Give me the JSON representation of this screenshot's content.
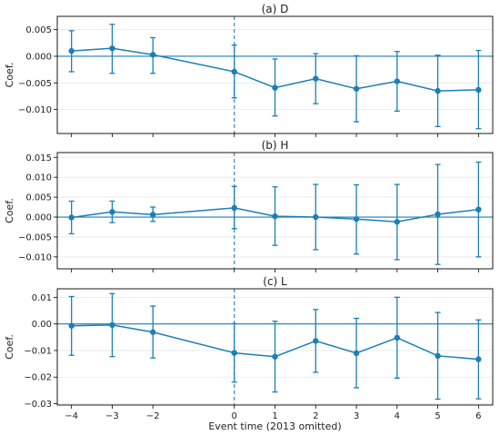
{
  "chart_data": [
    {
      "type": "line",
      "title": "(a) D",
      "ylabel": "Coef.",
      "xlabel": "",
      "ylim": [
        -0.0145,
        0.0075
      ],
      "yticks": [
        0.005,
        0.0,
        -0.005,
        -0.01
      ],
      "ytick_labels": [
        "0.005",
        "0.000",
        "−0.005",
        "−0.010"
      ],
      "x": [
        -4,
        -3,
        -2,
        0,
        1,
        2,
        3,
        4,
        5,
        6
      ],
      "y": [
        0.001,
        0.0015,
        0.0003,
        -0.0029,
        -0.0059,
        -0.0042,
        -0.0061,
        -0.0047,
        -0.0065,
        -0.0063
      ],
      "ci_low": [
        -0.0029,
        -0.0032,
        -0.0032,
        -0.0078,
        -0.0112,
        -0.0089,
        -0.0123,
        -0.0103,
        -0.0132,
        -0.0136
      ],
      "ci_high": [
        0.0048,
        0.006,
        0.0035,
        0.0021,
        -0.0005,
        0.0005,
        0.0001,
        0.0009,
        0.0002,
        0.0011
      ]
    },
    {
      "type": "line",
      "title": "(b) H",
      "ylabel": "Coef.",
      "xlabel": "",
      "ylim": [
        -0.013,
        0.0162
      ],
      "yticks": [
        0.015,
        0.01,
        0.005,
        0.0,
        -0.005,
        -0.01
      ],
      "ytick_labels": [
        "0.015",
        "0.010",
        "0.005",
        "0.000",
        "−0.005",
        "−0.010"
      ],
      "x": [
        -4,
        -3,
        -2,
        0,
        1,
        2,
        3,
        4,
        5,
        6
      ],
      "y": [
        -0.0001,
        0.0013,
        0.0006,
        0.0023,
        0.0002,
        0.0,
        -0.0005,
        -0.0012,
        0.0007,
        0.0019
      ],
      "ci_low": [
        -0.0042,
        -0.0014,
        -0.0011,
        -0.0029,
        -0.0071,
        -0.0082,
        -0.0093,
        -0.0107,
        -0.0119,
        -0.01
      ],
      "ci_high": [
        0.004,
        0.004,
        0.0025,
        0.0077,
        0.0076,
        0.0082,
        0.0081,
        0.0082,
        0.0132,
        0.0138
      ]
    },
    {
      "type": "line",
      "title": "(c) L",
      "ylabel": "Coef.",
      "xlabel": "Event time (2013 omitted)",
      "ylim": [
        -0.0305,
        0.0132
      ],
      "yticks": [
        0.01,
        0.0,
        -0.01,
        -0.02,
        -0.03
      ],
      "ytick_labels": [
        "0.01",
        "0.00",
        "−0.01",
        "−0.02",
        "−0.03"
      ],
      "x": [
        -4,
        -3,
        -2,
        0,
        1,
        2,
        3,
        4,
        5,
        6
      ],
      "y": [
        -0.0007,
        -0.0004,
        -0.0031,
        -0.0109,
        -0.0123,
        -0.0064,
        -0.011,
        -0.0052,
        -0.012,
        -0.0133
      ],
      "ci_low": [
        -0.0118,
        -0.0123,
        -0.0128,
        -0.0219,
        -0.0256,
        -0.0182,
        -0.024,
        -0.0204,
        -0.0283,
        -0.0282
      ],
      "ci_high": [
        0.0103,
        0.0114,
        0.0067,
        0.0001,
        0.001,
        0.0054,
        0.0021,
        0.01,
        0.0043,
        0.0015
      ]
    }
  ],
  "xticks": [
    -4,
    -3,
    -2,
    0,
    1,
    2,
    3,
    4,
    5,
    6
  ],
  "xtick_labels": [
    "−4",
    "−3",
    "−2",
    "0",
    "1",
    "2",
    "3",
    "4",
    "5",
    "6"
  ],
  "xlim": [
    -4.35,
    6.35
  ],
  "event_line_x": 0,
  "colors": {
    "series": "#1a7fb7",
    "zero_line": "#1a7fb7",
    "grid": "#e6e6e6",
    "axis": "#000000"
  }
}
